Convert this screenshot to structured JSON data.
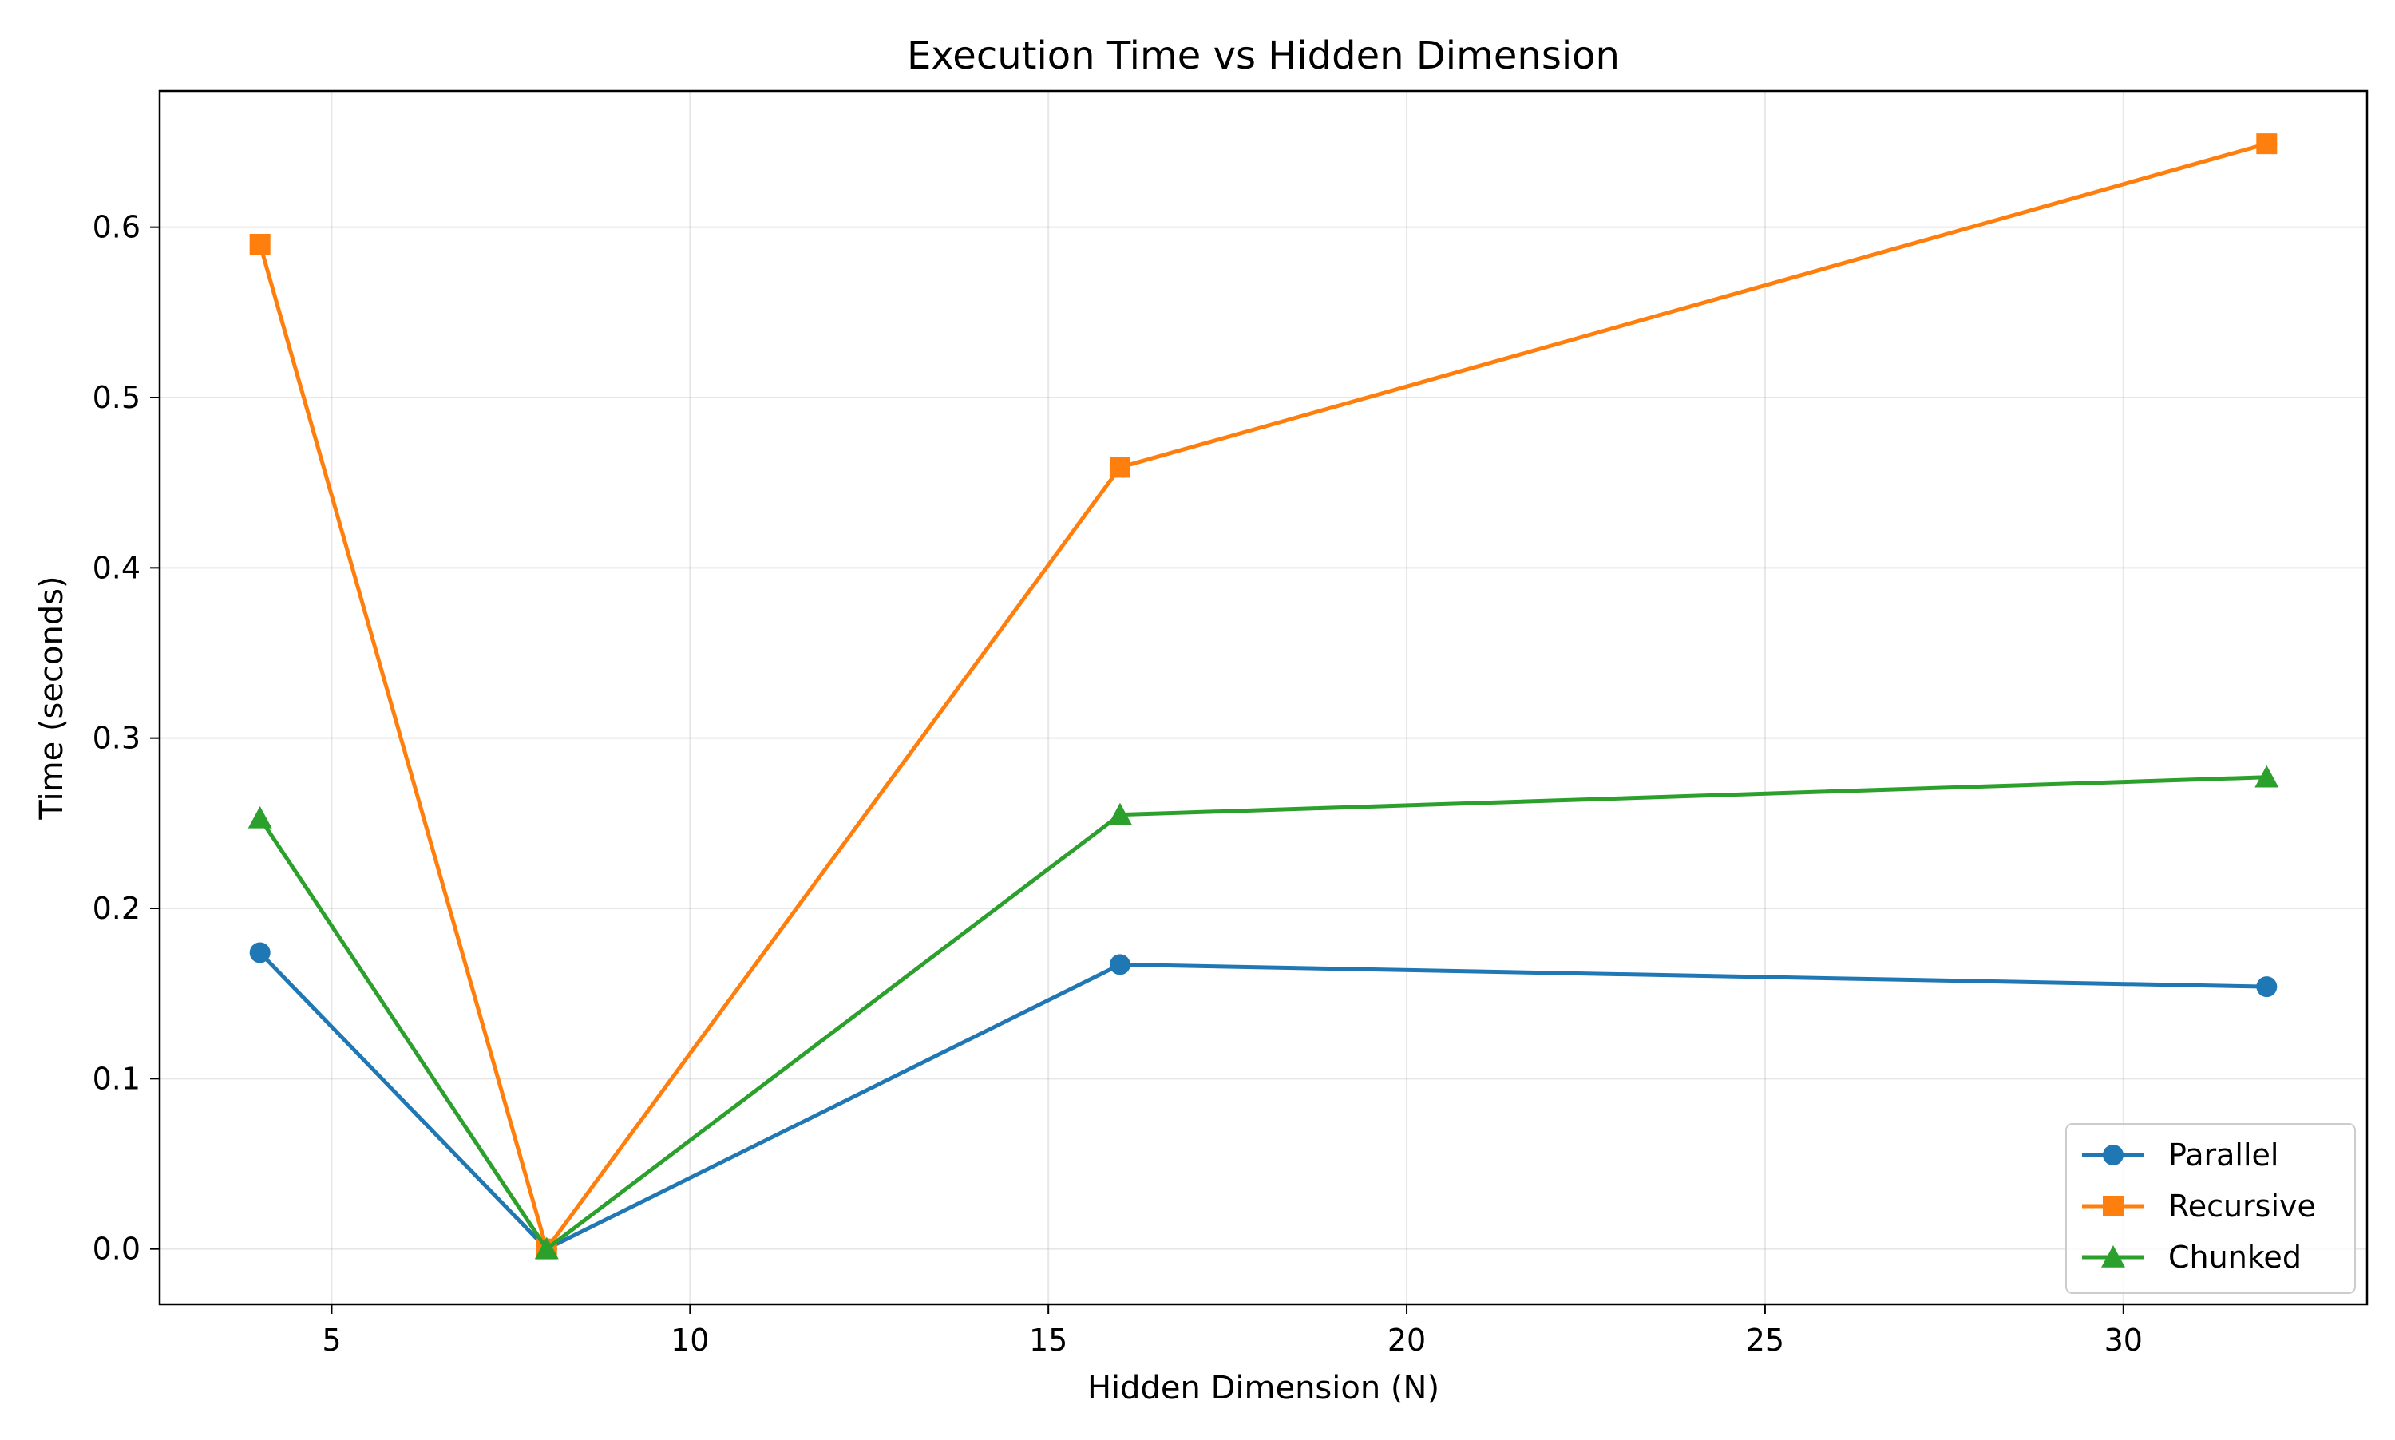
{
  "chart_data": {
    "type": "line",
    "title": "Execution Time vs Hidden Dimension",
    "xlabel": "Hidden Dimension (N)",
    "ylabel": "Time (seconds)",
    "xlim": [
      2.6,
      33.4
    ],
    "ylim": [
      -0.0325,
      0.68
    ],
    "xticks": [
      5,
      10,
      15,
      20,
      25,
      30
    ],
    "yticks": [
      0.0,
      0.1,
      0.2,
      0.3,
      0.4,
      0.5,
      0.6
    ],
    "xtick_labels": [
      "5",
      "10",
      "15",
      "20",
      "25",
      "30"
    ],
    "ytick_labels": [
      "0.0",
      "0.1",
      "0.2",
      "0.3",
      "0.4",
      "0.5",
      "0.6"
    ],
    "grid": true,
    "legend_position": "lower-right",
    "x": [
      4,
      8,
      16,
      32
    ],
    "series": [
      {
        "name": "Parallel",
        "values": [
          0.174,
          0.0,
          0.167,
          0.154
        ],
        "color": "#1f77b4",
        "marker": "circle"
      },
      {
        "name": "Recursive",
        "values": [
          0.59,
          0.0,
          0.459,
          0.649
        ],
        "color": "#ff7f0e",
        "marker": "square"
      },
      {
        "name": "Chunked",
        "values": [
          0.253,
          0.0,
          0.255,
          0.277
        ],
        "color": "#2ca02c",
        "marker": "triangle"
      }
    ]
  }
}
